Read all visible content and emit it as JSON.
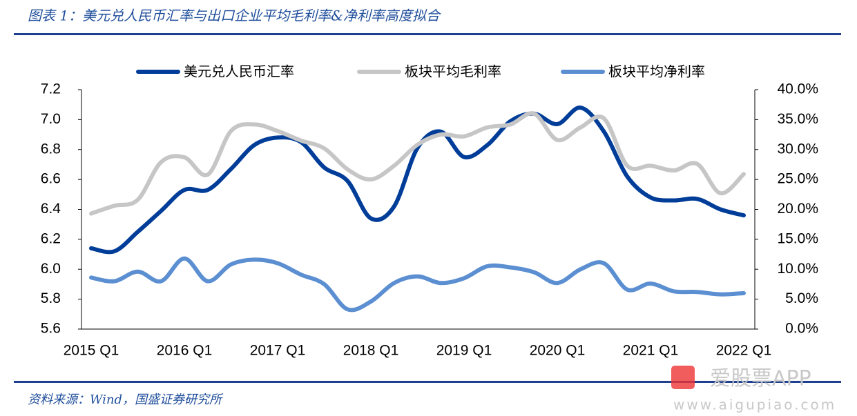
{
  "chart_data": {
    "type": "line",
    "title": "图表 1：美元兑人民币汇率与出口企业平均毛利率&净利率高度拟合",
    "source": "资料来源：Wind，国盛证券研究所",
    "watermark": "爱股票APP",
    "watermark_url": "www.aigupiao.com",
    "categories": [
      "2015 Q1",
      null,
      null,
      null,
      "2016 Q1",
      null,
      null,
      null,
      "2017 Q1",
      null,
      null,
      null,
      "2018 Q1",
      null,
      null,
      null,
      "2019 Q1",
      null,
      null,
      null,
      "2020 Q1",
      null,
      null,
      null,
      "2021 Q1",
      null,
      null,
      null,
      "2022 Q1"
    ],
    "series": [
      {
        "name": "美元兑人民币汇率",
        "color": "#003d99",
        "values": [
          6.14,
          6.12,
          6.25,
          6.39,
          6.53,
          6.53,
          6.67,
          6.83,
          6.88,
          6.85,
          6.68,
          6.59,
          6.34,
          6.42,
          6.81,
          6.92,
          6.75,
          6.83,
          6.99,
          7.04,
          6.97,
          7.08,
          6.92,
          6.62,
          6.48,
          6.46,
          6.47,
          6.4,
          6.36
        ]
      },
      {
        "name": "板块平均毛利率",
        "color": "#c6c6c6",
        "axis": "y2",
        "values": [
          19.3,
          20.6,
          21.6,
          27.9,
          28.7,
          25.8,
          33.1,
          34.2,
          33.1,
          31.5,
          30.2,
          26.7,
          25.0,
          27.3,
          30.8,
          32.5,
          32.2,
          33.7,
          34.2,
          36.0,
          31.6,
          33.7,
          35.2,
          27.3,
          27.3,
          26.5,
          27.6,
          22.7,
          25.9
        ]
      },
      {
        "name": "板块平均净利率",
        "color": "#5b8fd1",
        "axis": "y2",
        "values": [
          8.6,
          8.0,
          9.6,
          8.0,
          11.8,
          8.0,
          10.8,
          11.6,
          11.0,
          9.1,
          7.5,
          3.3,
          4.6,
          7.7,
          8.8,
          7.7,
          8.5,
          10.5,
          10.3,
          9.5,
          7.7,
          10.0,
          11.0,
          6.6,
          7.6,
          6.3,
          6.2,
          5.8,
          6.0
        ]
      }
    ],
    "ylim": [
      5.6,
      7.2
    ],
    "yticks": [
      5.6,
      5.8,
      {
        "value": 6,
        "label": "6.0"
      },
      6.2,
      6.4,
      6.6,
      6.8,
      {
        "value": 7,
        "label": "7.0"
      },
      7.2
    ],
    "y2lim": [
      0,
      40
    ],
    "y2ticks": [
      {
        "value": 0,
        "label": "0.0%"
      },
      {
        "value": 5,
        "label": "5.0%"
      },
      {
        "value": 10,
        "label": "10.0%"
      },
      {
        "value": 15,
        "label": "15.0%"
      },
      {
        "value": 20,
        "label": "20.0%"
      },
      {
        "value": 25,
        "label": "25.0%"
      },
      {
        "value": 30,
        "label": "30.0%"
      },
      {
        "value": 35,
        "label": "35.0%"
      },
      {
        "value": 40,
        "label": "40.0%"
      }
    ],
    "legend": "top"
  }
}
